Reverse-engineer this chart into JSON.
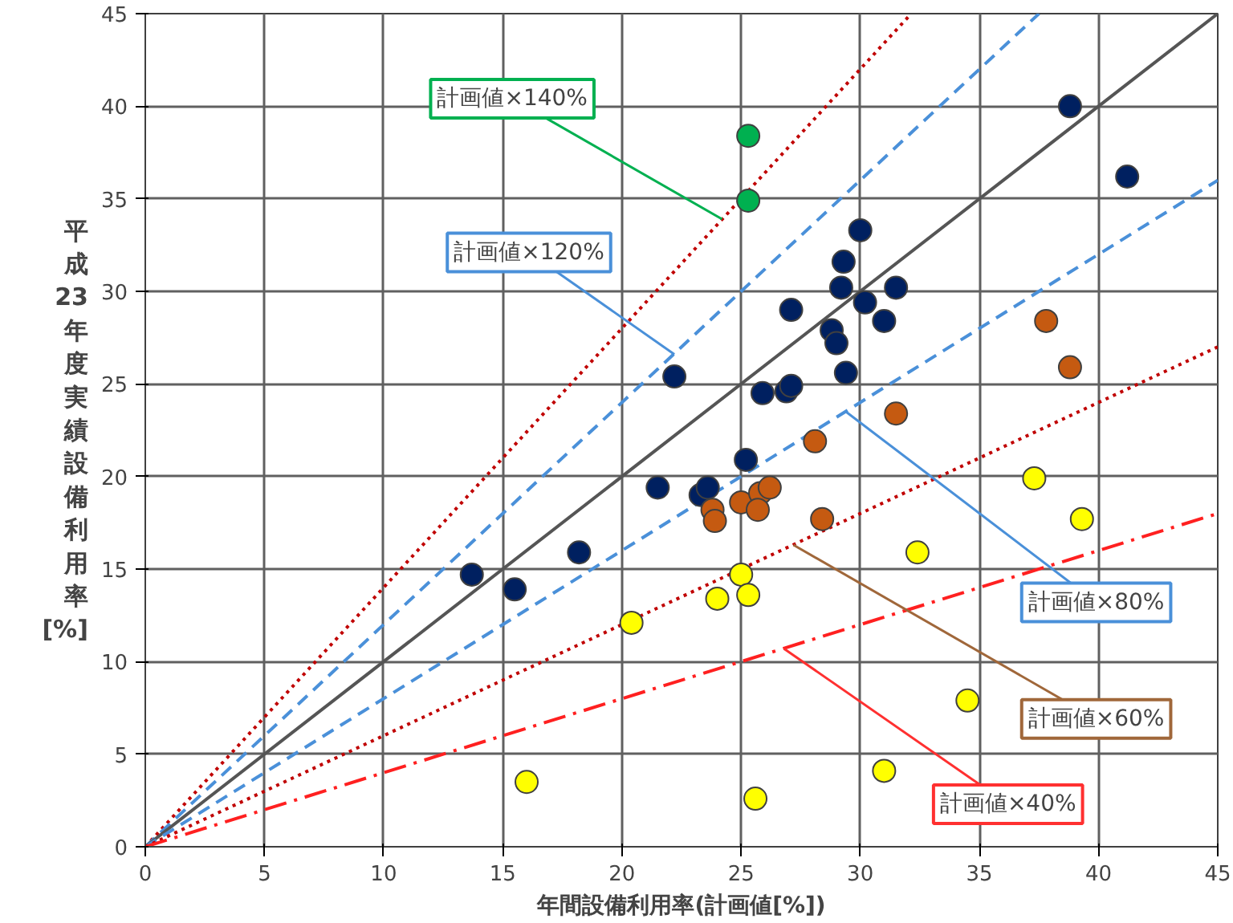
{
  "chart_data": {
    "type": "scatter",
    "xlabel": "年間設備利用率(計画値[%])",
    "ylabel": "平成23年度実績設備利用率[%]",
    "xlim": [
      0,
      45
    ],
    "ylim": [
      0,
      45
    ],
    "xticks": [
      0,
      5,
      10,
      15,
      20,
      25,
      30,
      35,
      40,
      45
    ],
    "yticks": [
      0,
      5,
      10,
      15,
      20,
      25,
      30,
      35,
      40,
      45
    ],
    "grid": true,
    "marker": "circle",
    "series": [
      {
        "type": "line",
        "marker": "none",
        "color": "#c00000",
        "line_style": "dotted",
        "x": [
          0,
          32.14
        ],
        "values": [
          0,
          45
        ]
      },
      {
        "type": "line",
        "marker": "none",
        "color": "#4a90d9",
        "line_style": "dashed",
        "x": [
          0,
          37.5
        ],
        "values": [
          0,
          45
        ]
      },
      {
        "type": "line",
        "marker": "none",
        "color": "#555555",
        "line_style": "solid",
        "x": [
          0,
          45
        ],
        "values": [
          0,
          45
        ]
      },
      {
        "type": "line",
        "marker": "none",
        "color": "#4a90d9",
        "line_style": "dashed",
        "x": [
          0,
          45
        ],
        "values": [
          0,
          36
        ]
      },
      {
        "type": "line",
        "marker": "none",
        "color": "#c00000",
        "line_style": "dotted",
        "x": [
          0,
          45
        ],
        "values": [
          0,
          27
        ]
      },
      {
        "type": "line",
        "marker": "none",
        "color": "#ff2020",
        "line_style": "dashdot",
        "x": [
          0,
          45
        ],
        "values": [
          0,
          18
        ]
      },
      {
        "color": "#002060",
        "x": [
          13.7,
          15.5,
          18.2,
          21.5,
          23.3,
          23.6,
          22.2,
          25.2,
          25.9,
          26.9,
          27.1,
          27.1,
          28.8,
          29.0,
          29.4,
          29.2,
          29.3,
          30.0,
          30.2,
          31.0,
          31.5,
          38.8,
          41.2
        ],
        "values": [
          14.7,
          13.9,
          15.9,
          19.4,
          19.0,
          19.4,
          25.4,
          20.9,
          24.5,
          24.6,
          24.9,
          29.0,
          27.9,
          27.2,
          25.6,
          30.2,
          31.6,
          33.3,
          29.4,
          28.4,
          30.2,
          40.0,
          36.2
        ]
      },
      {
        "color": "#00b050",
        "x": [
          25.3,
          25.3
        ],
        "values": [
          38.4,
          34.9
        ]
      },
      {
        "color": "#c55a11",
        "x": [
          23.8,
          23.9,
          25.0,
          25.8,
          25.7,
          26.2,
          28.1,
          28.4,
          31.5,
          37.8,
          38.8
        ],
        "values": [
          18.2,
          17.6,
          18.6,
          19.1,
          18.2,
          19.4,
          21.9,
          17.7,
          23.4,
          28.4,
          25.9
        ]
      },
      {
        "color": "#ffff00",
        "x": [
          20.4,
          24.0,
          25.0,
          25.3,
          16.0,
          25.6,
          31.0,
          32.4,
          34.5,
          37.3,
          39.3
        ],
        "values": [
          12.1,
          13.4,
          14.7,
          13.6,
          3.5,
          2.6,
          4.1,
          15.9,
          7.9,
          19.9,
          17.7
        ]
      }
    ],
    "annotations": [
      {
        "text": "計画値×140%",
        "x": 24.2,
        "y": 33.9
      },
      {
        "text": "計画値×120%",
        "x": 22.2,
        "y": 26.6
      },
      {
        "text": "計画値×80%",
        "x": 29.4,
        "y": 23.5
      },
      {
        "text": "計画値×60%",
        "x": 27.2,
        "y": 16.3
      },
      {
        "text": "計画値×40%",
        "x": 26.8,
        "y": 10.7
      }
    ]
  }
}
